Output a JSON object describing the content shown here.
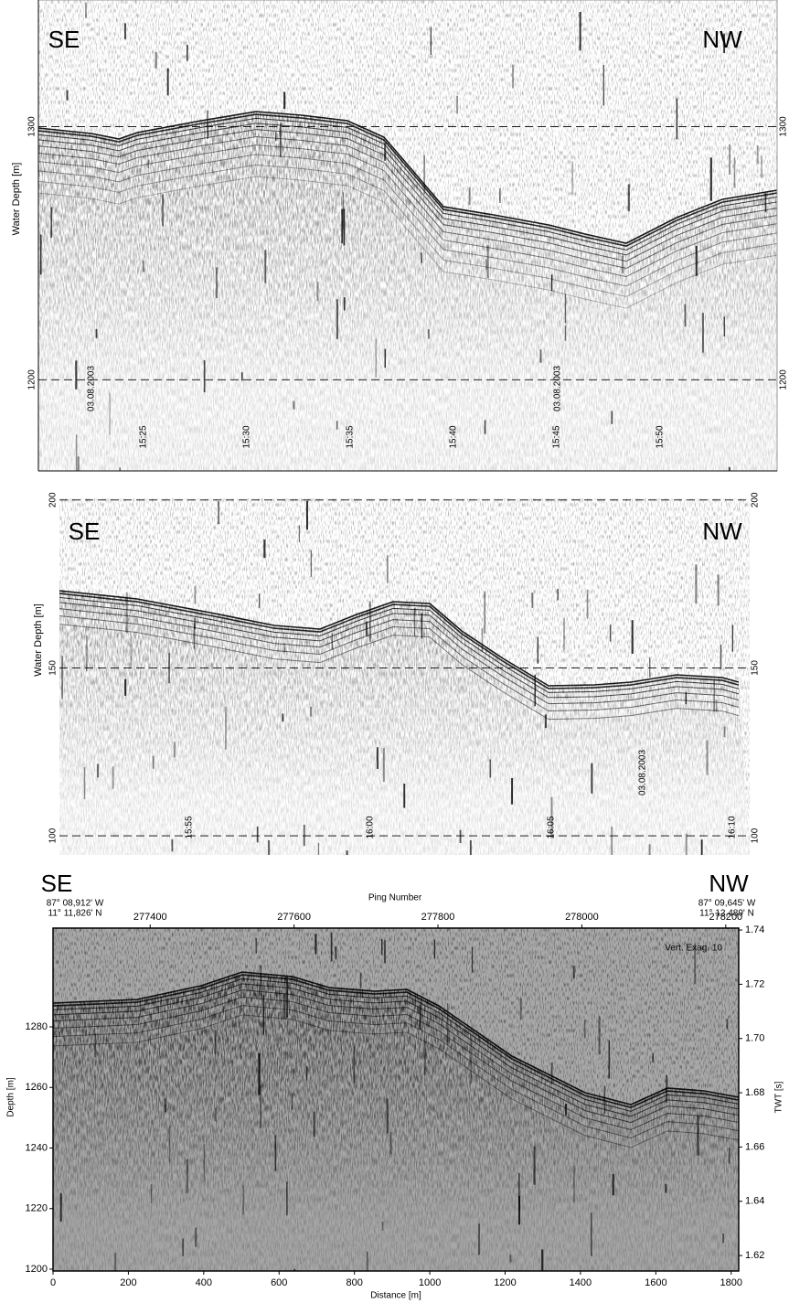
{
  "chart_data": [
    {
      "type": "profile",
      "left": "SE",
      "right": "NW",
      "y_label": "Water Depth [m]",
      "ylim": [
        1164,
        1350
      ],
      "yticks": [
        1200,
        1300
      ],
      "grid": true,
      "time_labels": [
        "15:25",
        "15:30",
        "15:35",
        "15:40",
        "15:45",
        "15:50"
      ],
      "date_labels": [
        "03.08.2003",
        "03.08.2003"
      ]
    },
    {
      "type": "profile",
      "left": "SE",
      "right": "NW",
      "y_label": "Water Depth [m]",
      "ylim": [
        94.3,
        200.5
      ],
      "yticks": [
        100,
        150,
        200
      ],
      "grid": true,
      "time_labels": [
        "15:55",
        "16:00",
        "16:05",
        "16:10"
      ],
      "date_labels": [
        "03.08.2003"
      ]
    },
    {
      "type": "profile_axes",
      "left": "SE",
      "right": "NW",
      "left_position": [
        "87° 08,912' W",
        "11° 11,826' N"
      ],
      "right_position": [
        "87° 09,645' W",
        "11° 12,489' N"
      ],
      "x_label": "Distance [m]",
      "xlim": [
        0,
        1820
      ],
      "xticks": [
        0,
        200,
        400,
        600,
        800,
        1000,
        1200,
        1400,
        1600,
        1800
      ],
      "x2_label": "Ping Number",
      "x2lim": [
        277265,
        278218
      ],
      "x2ticks": [
        277400,
        277600,
        277800,
        278000,
        278200
      ],
      "y_label": "Depth [m]",
      "ylim": [
        1199.4,
        1312.6
      ],
      "yticks": [
        1200,
        1220,
        1240,
        1260,
        1280
      ],
      "y2_label": "TWT [s]",
      "y2lim": [
        1.6143,
        1.7407
      ],
      "y2ticks": [
        1.62,
        1.64,
        1.66,
        1.68,
        {
          "value": 1.7,
          "label": "1.70"
        },
        1.72,
        1.74
      ],
      "annotation": "Vert. Exag. 10"
    }
  ]
}
